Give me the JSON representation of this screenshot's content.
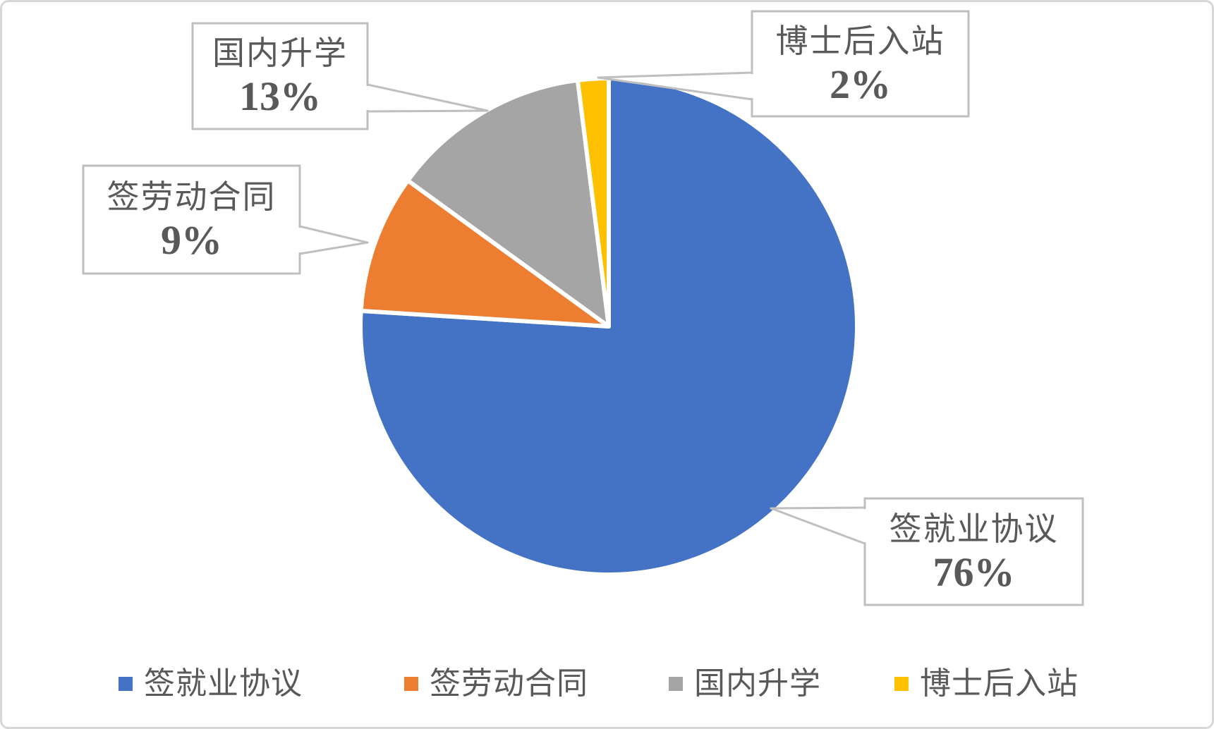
{
  "chart_data": {
    "type": "pie",
    "title": "",
    "categories": [
      "签就业协议",
      "签劳动合同",
      "国内升学",
      "博士后入站"
    ],
    "values": [
      76,
      9,
      13,
      2
    ],
    "unit": "percent",
    "colors": [
      "#4472C4",
      "#ED7D31",
      "#A5A5A5",
      "#FFC000"
    ],
    "start_angle_deg": 0,
    "direction": "clockwise",
    "grid": "off",
    "legend_position": "bottom",
    "callouts": [
      {
        "label": "签就业协议",
        "pct": "76%"
      },
      {
        "label": "签劳动合同",
        "pct": "9%"
      },
      {
        "label": "国内升学",
        "pct": "13%"
      },
      {
        "label": "博士后入站",
        "pct": "2%"
      }
    ],
    "legend": [
      {
        "label": "签就业协议",
        "color": "#4472C4"
      },
      {
        "label": "签劳动合同",
        "color": "#ED7D31"
      },
      {
        "label": "国内升学",
        "color": "#A5A5A5"
      },
      {
        "label": "博士后入站",
        "color": "#FFC000"
      }
    ],
    "slice_separator_color": "#FFFFFF",
    "callout_border_color": "#BFBFBF",
    "text_color": "#595959",
    "frame_border_color": "#D7D7D7",
    "background": "#FFFFFF"
  }
}
